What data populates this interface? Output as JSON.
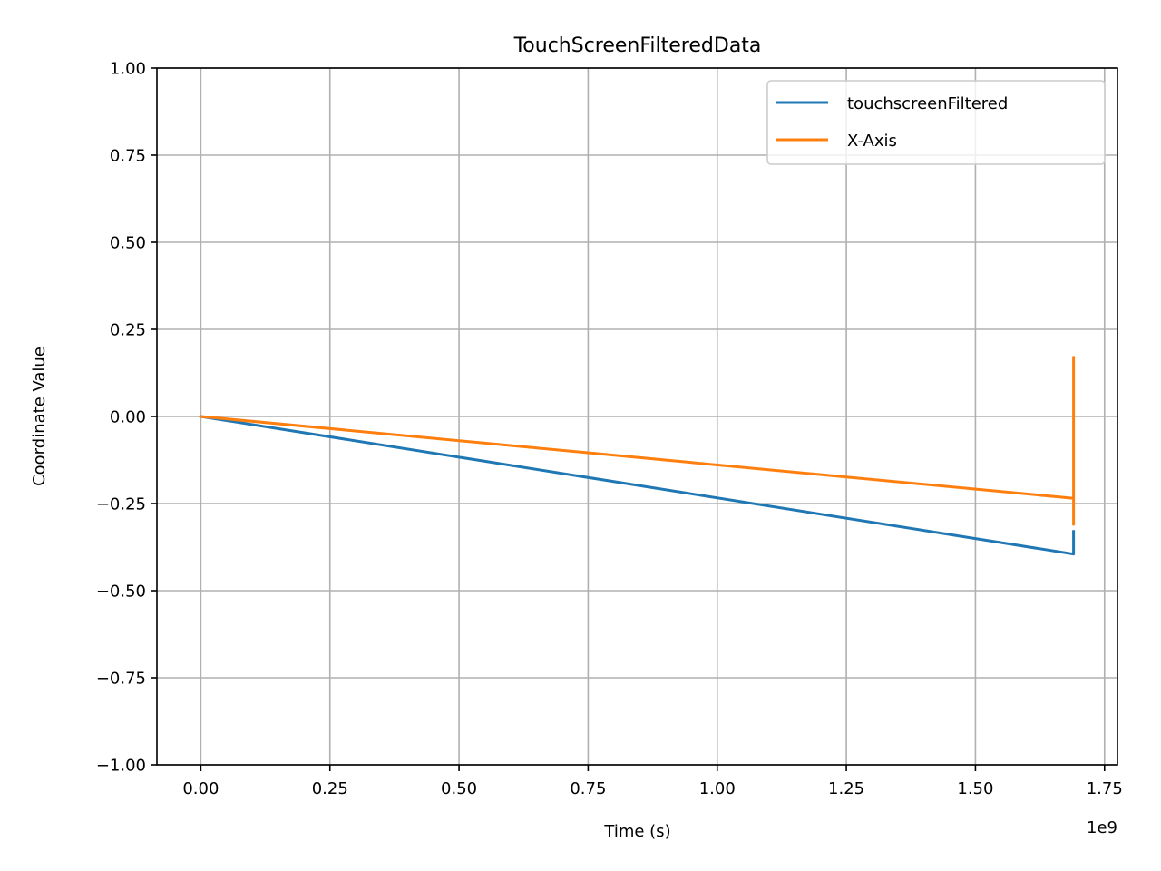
{
  "chart_data": {
    "type": "line",
    "title": "TouchScreenFilteredData",
    "xlabel": "Time (s)",
    "ylabel": "Coordinate Value",
    "x_offset_label": "1e9",
    "xlim": [
      -0.085,
      1.775
    ],
    "ylim": [
      -1.0,
      1.0
    ],
    "x_ticks": [
      0.0,
      0.25,
      0.5,
      0.75,
      1.0,
      1.25,
      1.5,
      1.75
    ],
    "x_tick_labels": [
      "0.00",
      "0.25",
      "0.50",
      "0.75",
      "1.00",
      "1.25",
      "1.50",
      "1.75"
    ],
    "y_ticks": [
      1.0,
      0.75,
      0.5,
      0.25,
      0.0,
      -0.25,
      -0.5,
      -0.75,
      -1.0
    ],
    "y_tick_labels": [
      "1.00",
      "0.75",
      "0.50",
      "0.25",
      "0.00",
      "−0.25",
      "−0.50",
      "−0.75",
      "−1.00"
    ],
    "grid": true,
    "legend_position": "top-right",
    "series": [
      {
        "name": "touchscreenFiltered",
        "color": "#1f77b4",
        "x": [
          0.0,
          1.69,
          1.69,
          1.69
        ],
        "y": [
          0.0,
          -0.395,
          -0.33,
          -0.33
        ]
      },
      {
        "name": "X-Axis",
        "color": "#ff7f0e",
        "x": [
          0.0,
          1.69,
          1.69,
          1.69,
          1.69
        ],
        "y": [
          0.0,
          -0.235,
          0.17,
          -0.31,
          -0.235
        ]
      }
    ]
  }
}
